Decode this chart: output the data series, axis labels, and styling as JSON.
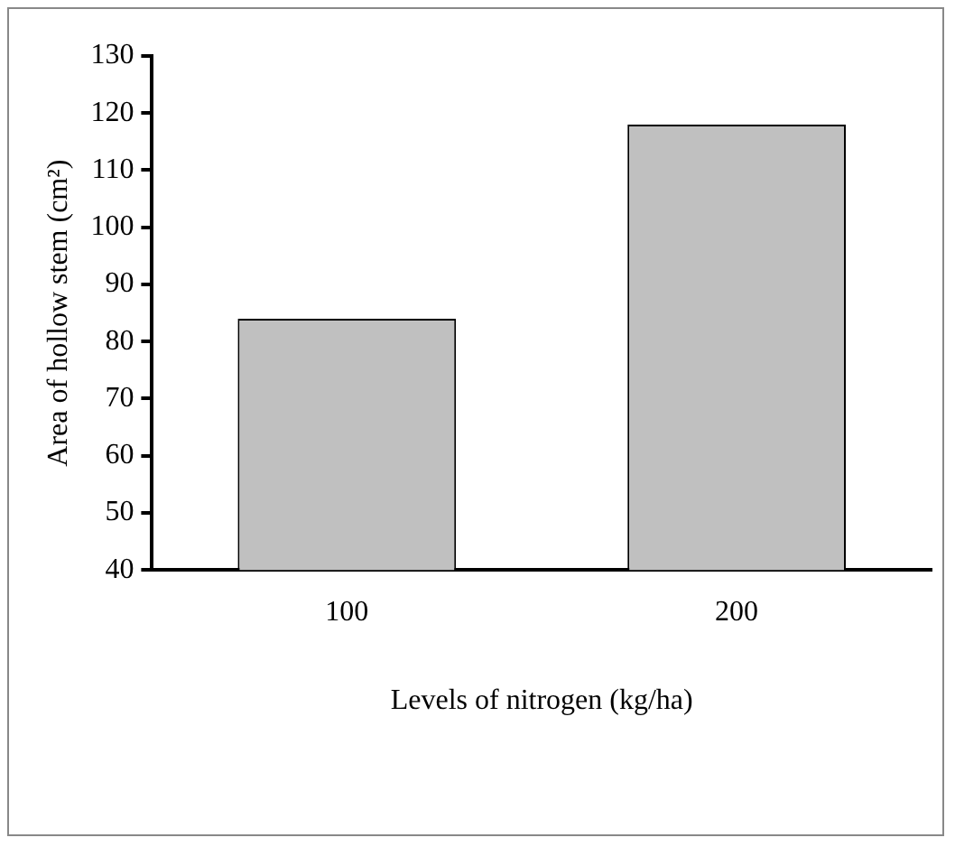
{
  "chart_data": {
    "type": "bar",
    "xlabel": "Levels of nitrogen (kg/ha)",
    "ylabel": "Area of hollow stem (cm²)",
    "categories": [
      "100",
      "200"
    ],
    "values": [
      84,
      118
    ],
    "color": "#c0c0c0",
    "ylim": [
      40,
      130
    ],
    "yticks": [
      40,
      50,
      60,
      70,
      80,
      90,
      100,
      110,
      120,
      130
    ],
    "grid": false,
    "legend": false
  }
}
